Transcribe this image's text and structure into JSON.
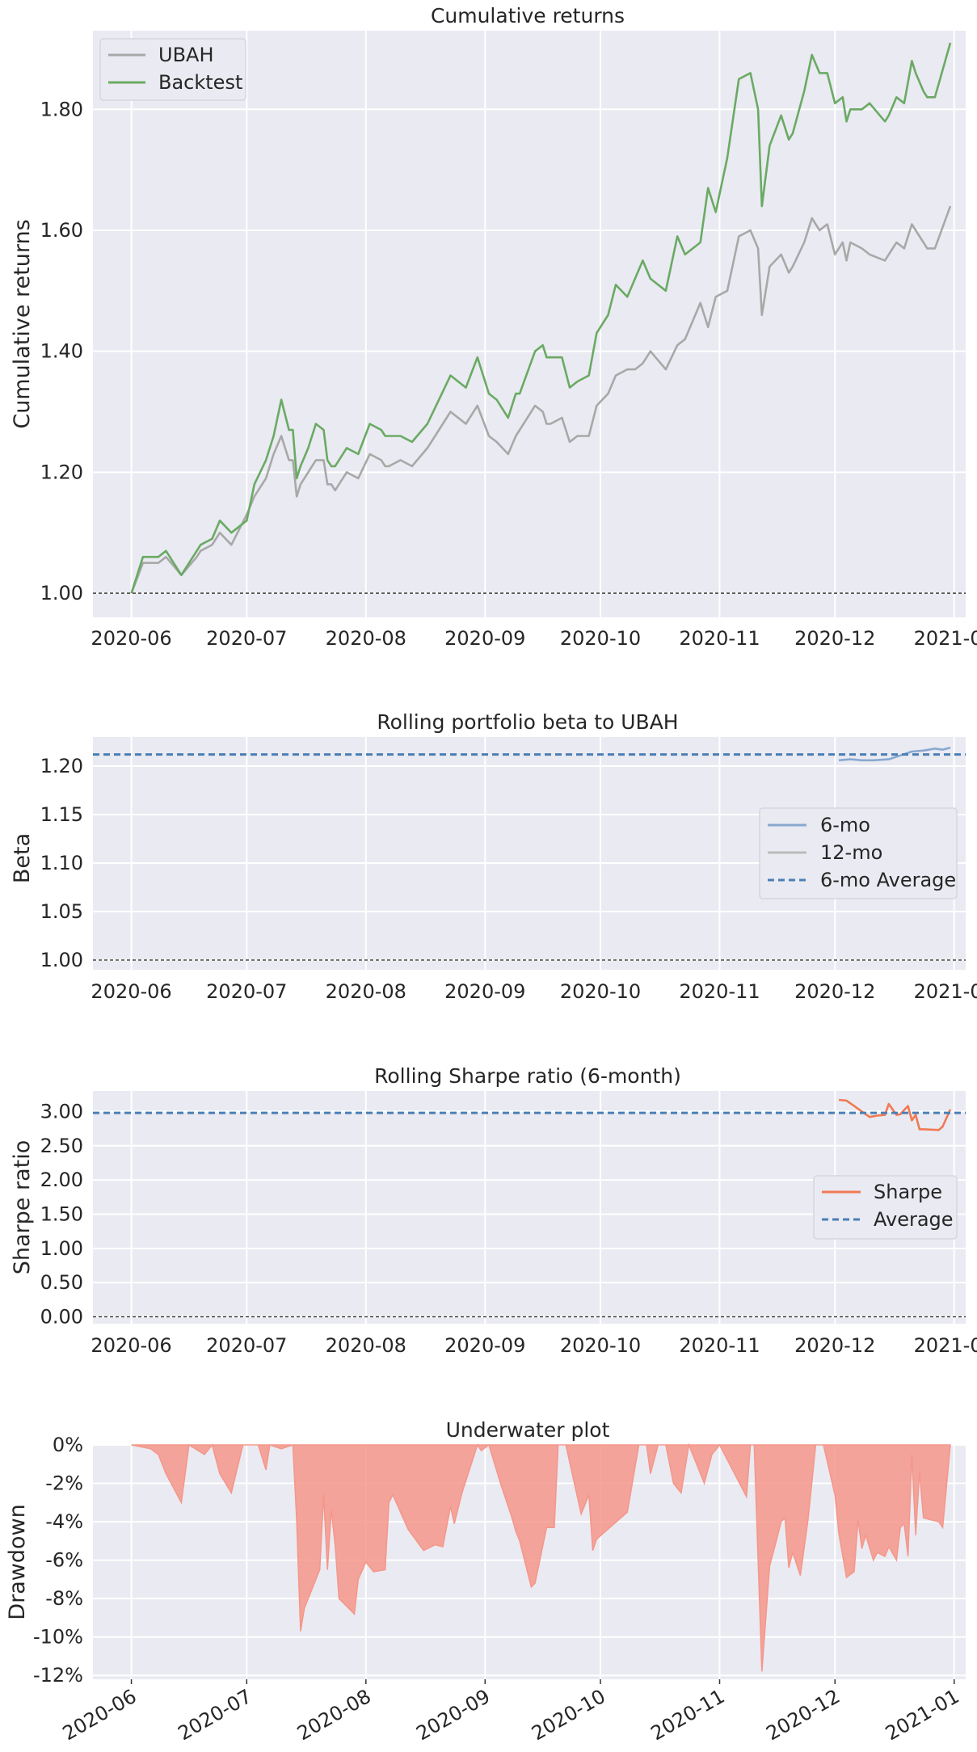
{
  "colors": {
    "ubah": "#a8a8a8",
    "backtest": "#6aaa64",
    "beta6": "#88a8d0",
    "beta12": "#bcbcbc",
    "average": "#4a7fb5",
    "sharpe": "#f07a54",
    "drawdown": "#f4978a",
    "zero_line": "#222222"
  },
  "chart_data": [
    {
      "type": "line",
      "title": "Cumulative returns",
      "ylabel": "Cumulative returns",
      "xlabel": "",
      "ylim": [
        0.96,
        1.93
      ],
      "yticks": [
        1.0,
        1.2,
        1.4,
        1.6,
        1.8
      ],
      "ytick_labels": [
        "1.00",
        "1.20",
        "1.40",
        "1.60",
        "1.80"
      ],
      "xlim": [
        "2020-05-22",
        "2021-01-04"
      ],
      "xticks": [
        "2020-06-01",
        "2020-07-01",
        "2020-08-01",
        "2020-09-01",
        "2020-10-01",
        "2020-11-01",
        "2020-12-01",
        "2021-01-01"
      ],
      "xtick_labels": [
        "2020-06",
        "2020-07",
        "2020-08",
        "2020-09",
        "2020-10",
        "2020-11",
        "2020-12",
        "2021-01"
      ],
      "hline": 1.0,
      "legend_position": "top-left",
      "series": [
        {
          "name": "UBAH",
          "x": [
            "2020-06-01",
            "2020-06-04",
            "2020-06-08",
            "2020-06-10",
            "2020-06-14",
            "2020-06-18",
            "2020-06-19",
            "2020-06-22",
            "2020-06-24",
            "2020-06-27",
            "2020-07-01",
            "2020-07-03",
            "2020-07-06",
            "2020-07-08",
            "2020-07-10",
            "2020-07-12",
            "2020-07-13",
            "2020-07-14",
            "2020-07-15",
            "2020-07-17",
            "2020-07-19",
            "2020-07-21",
            "2020-07-22",
            "2020-07-23",
            "2020-07-24",
            "2020-07-27",
            "2020-07-30",
            "2020-08-02",
            "2020-08-05",
            "2020-08-06",
            "2020-08-07",
            "2020-08-10",
            "2020-08-13",
            "2020-08-17",
            "2020-08-20",
            "2020-08-23",
            "2020-08-25",
            "2020-08-27",
            "2020-08-30",
            "2020-09-02",
            "2020-09-04",
            "2020-09-07",
            "2020-09-09",
            "2020-09-10",
            "2020-09-14",
            "2020-09-16",
            "2020-09-17",
            "2020-09-18",
            "2020-09-21",
            "2020-09-23",
            "2020-09-25",
            "2020-09-28",
            "2020-09-30",
            "2020-10-03",
            "2020-10-05",
            "2020-10-08",
            "2020-10-10",
            "2020-10-12",
            "2020-10-14",
            "2020-10-18",
            "2020-10-21",
            "2020-10-23",
            "2020-10-27",
            "2020-10-29",
            "2020-10-31",
            "2020-11-03",
            "2020-11-06",
            "2020-11-09",
            "2020-11-11",
            "2020-11-12",
            "2020-11-14",
            "2020-11-17",
            "2020-11-19",
            "2020-11-20",
            "2020-11-23",
            "2020-11-25",
            "2020-11-27",
            "2020-11-29",
            "2020-12-01",
            "2020-12-03",
            "2020-12-04",
            "2020-12-05",
            "2020-12-08",
            "2020-12-10",
            "2020-12-14",
            "2020-12-15",
            "2020-12-17",
            "2020-12-19",
            "2020-12-21",
            "2020-12-22",
            "2020-12-24",
            "2020-12-25",
            "2020-12-27",
            "2020-12-31"
          ],
          "values": [
            1.0,
            1.05,
            1.05,
            1.06,
            1.03,
            1.06,
            1.07,
            1.08,
            1.1,
            1.08,
            1.13,
            1.16,
            1.19,
            1.23,
            1.26,
            1.22,
            1.22,
            1.16,
            1.18,
            1.2,
            1.22,
            1.22,
            1.18,
            1.18,
            1.17,
            1.2,
            1.19,
            1.23,
            1.22,
            1.21,
            1.21,
            1.22,
            1.21,
            1.24,
            1.27,
            1.3,
            1.29,
            1.28,
            1.31,
            1.26,
            1.25,
            1.23,
            1.26,
            1.27,
            1.31,
            1.3,
            1.28,
            1.28,
            1.29,
            1.25,
            1.26,
            1.26,
            1.31,
            1.33,
            1.36,
            1.37,
            1.37,
            1.38,
            1.4,
            1.37,
            1.41,
            1.42,
            1.48,
            1.44,
            1.49,
            1.5,
            1.59,
            1.6,
            1.57,
            1.46,
            1.54,
            1.56,
            1.53,
            1.54,
            1.58,
            1.62,
            1.6,
            1.61,
            1.56,
            1.58,
            1.55,
            1.58,
            1.57,
            1.56,
            1.55,
            1.56,
            1.58,
            1.57,
            1.61,
            1.6,
            1.58,
            1.57,
            1.57,
            1.64
          ]
        },
        {
          "name": "Backtest",
          "x": [
            "2020-06-01",
            "2020-06-04",
            "2020-06-08",
            "2020-06-10",
            "2020-06-14",
            "2020-06-18",
            "2020-06-19",
            "2020-06-22",
            "2020-06-24",
            "2020-06-27",
            "2020-07-01",
            "2020-07-03",
            "2020-07-06",
            "2020-07-08",
            "2020-07-10",
            "2020-07-12",
            "2020-07-13",
            "2020-07-14",
            "2020-07-15",
            "2020-07-17",
            "2020-07-19",
            "2020-07-21",
            "2020-07-22",
            "2020-07-23",
            "2020-07-24",
            "2020-07-27",
            "2020-07-30",
            "2020-08-02",
            "2020-08-05",
            "2020-08-06",
            "2020-08-07",
            "2020-08-10",
            "2020-08-13",
            "2020-08-17",
            "2020-08-20",
            "2020-08-23",
            "2020-08-25",
            "2020-08-27",
            "2020-08-30",
            "2020-09-02",
            "2020-09-04",
            "2020-09-07",
            "2020-09-09",
            "2020-09-10",
            "2020-09-14",
            "2020-09-16",
            "2020-09-17",
            "2020-09-18",
            "2020-09-21",
            "2020-09-23",
            "2020-09-25",
            "2020-09-28",
            "2020-09-30",
            "2020-10-03",
            "2020-10-05",
            "2020-10-08",
            "2020-10-10",
            "2020-10-12",
            "2020-10-14",
            "2020-10-18",
            "2020-10-21",
            "2020-10-23",
            "2020-10-27",
            "2020-10-29",
            "2020-10-31",
            "2020-11-03",
            "2020-11-06",
            "2020-11-09",
            "2020-11-11",
            "2020-11-12",
            "2020-11-14",
            "2020-11-17",
            "2020-11-19",
            "2020-11-20",
            "2020-11-23",
            "2020-11-25",
            "2020-11-27",
            "2020-11-29",
            "2020-12-01",
            "2020-12-03",
            "2020-12-04",
            "2020-12-05",
            "2020-12-08",
            "2020-12-10",
            "2020-12-14",
            "2020-12-15",
            "2020-12-17",
            "2020-12-19",
            "2020-12-21",
            "2020-12-22",
            "2020-12-24",
            "2020-12-25",
            "2020-12-27",
            "2020-12-31"
          ],
          "values": [
            1.0,
            1.06,
            1.06,
            1.07,
            1.03,
            1.07,
            1.08,
            1.09,
            1.12,
            1.1,
            1.12,
            1.18,
            1.22,
            1.26,
            1.32,
            1.27,
            1.27,
            1.19,
            1.21,
            1.24,
            1.28,
            1.27,
            1.22,
            1.21,
            1.21,
            1.24,
            1.23,
            1.28,
            1.27,
            1.26,
            1.26,
            1.26,
            1.25,
            1.28,
            1.32,
            1.36,
            1.35,
            1.34,
            1.39,
            1.33,
            1.32,
            1.29,
            1.33,
            1.33,
            1.4,
            1.41,
            1.39,
            1.39,
            1.39,
            1.34,
            1.35,
            1.36,
            1.43,
            1.46,
            1.51,
            1.49,
            1.52,
            1.55,
            1.52,
            1.5,
            1.59,
            1.56,
            1.58,
            1.67,
            1.63,
            1.72,
            1.85,
            1.86,
            1.8,
            1.64,
            1.74,
            1.79,
            1.75,
            1.76,
            1.83,
            1.89,
            1.86,
            1.86,
            1.81,
            1.82,
            1.78,
            1.8,
            1.8,
            1.81,
            1.78,
            1.79,
            1.82,
            1.81,
            1.88,
            1.86,
            1.83,
            1.82,
            1.82,
            1.91
          ]
        }
      ]
    },
    {
      "type": "line",
      "title": "Rolling portfolio beta to UBAH",
      "ylabel": "Beta",
      "xlabel": "",
      "ylim": [
        0.99,
        1.23
      ],
      "yticks": [
        1.0,
        1.05,
        1.1,
        1.15,
        1.2
      ],
      "ytick_labels": [
        "1.00",
        "1.05",
        "1.10",
        "1.15",
        "1.20"
      ],
      "xlim": [
        "2020-05-22",
        "2021-01-04"
      ],
      "xticks": [
        "2020-06-01",
        "2020-07-01",
        "2020-08-01",
        "2020-09-01",
        "2020-10-01",
        "2020-11-01",
        "2020-12-01",
        "2021-01-01"
      ],
      "xtick_labels": [
        "2020-06",
        "2020-07",
        "2020-08",
        "2020-09",
        "2020-10",
        "2020-11",
        "2020-12",
        "2021-01"
      ],
      "hline": 1.0,
      "legend_position": "center-right",
      "series": [
        {
          "name": "6-mo",
          "x": [
            "2020-12-02",
            "2020-12-05",
            "2020-12-08",
            "2020-12-11",
            "2020-12-15",
            "2020-12-18",
            "2020-12-21",
            "2020-12-24",
            "2020-12-27",
            "2020-12-29",
            "2020-12-31"
          ],
          "values": [
            1.206,
            1.207,
            1.206,
            1.206,
            1.207,
            1.211,
            1.215,
            1.216,
            1.218,
            1.217,
            1.219
          ]
        },
        {
          "name": "12-mo",
          "x": [],
          "values": []
        },
        {
          "name": "6-mo Average",
          "hline": 1.212
        }
      ]
    },
    {
      "type": "line",
      "title": "Rolling Sharpe ratio (6-month)",
      "ylabel": "Sharpe ratio",
      "xlabel": "",
      "ylim": [
        -0.1,
        3.3
      ],
      "yticks": [
        0.0,
        0.5,
        1.0,
        1.5,
        2.0,
        2.5,
        3.0
      ],
      "ytick_labels": [
        "0.00",
        "0.50",
        "1.00",
        "1.50",
        "2.00",
        "2.50",
        "3.00"
      ],
      "xlim": [
        "2020-05-22",
        "2021-01-04"
      ],
      "xticks": [
        "2020-06-01",
        "2020-07-01",
        "2020-08-01",
        "2020-09-01",
        "2020-10-01",
        "2020-11-01",
        "2020-12-01",
        "2021-01-01"
      ],
      "xtick_labels": [
        "2020-06",
        "2020-07",
        "2020-08",
        "2020-09",
        "2020-10",
        "2020-11",
        "2020-12",
        "2021-01"
      ],
      "hline": 0.0,
      "legend_position": "center-right",
      "series": [
        {
          "name": "Sharpe",
          "x": [
            "2020-12-02",
            "2020-12-04",
            "2020-12-06",
            "2020-12-08",
            "2020-12-10",
            "2020-12-12",
            "2020-12-14",
            "2020-12-15",
            "2020-12-16",
            "2020-12-17",
            "2020-12-18",
            "2020-12-20",
            "2020-12-21",
            "2020-12-22",
            "2020-12-23",
            "2020-12-24",
            "2020-12-28",
            "2020-12-29",
            "2020-12-31"
          ],
          "values": [
            3.17,
            3.16,
            3.08,
            3.0,
            2.92,
            2.94,
            2.95,
            3.11,
            3.03,
            2.95,
            2.96,
            3.08,
            2.87,
            2.95,
            2.74,
            2.74,
            2.73,
            2.78,
            3.03
          ]
        },
        {
          "name": "Average",
          "hline": 2.98
        }
      ]
    },
    {
      "type": "area",
      "title": "Underwater plot",
      "ylabel": "Drawdown",
      "xlabel": "",
      "ylim": [
        -12.2,
        0.0
      ],
      "yticks": [
        0,
        -2,
        -4,
        -6,
        -8,
        -10,
        -12
      ],
      "ytick_labels": [
        "0%",
        "-2%",
        "-4%",
        "-6%",
        "-8%",
        "-10%",
        "-12%"
      ],
      "xlim": [
        "2020-05-22",
        "2021-01-04"
      ],
      "xticks": [
        "2020-06-01",
        "2020-07-01",
        "2020-08-01",
        "2020-09-01",
        "2020-10-01",
        "2020-11-01",
        "2020-12-01",
        "2021-01-01"
      ],
      "xtick_labels": [
        "2020-06",
        "2020-07",
        "2020-08",
        "2020-09",
        "2020-10",
        "2020-11",
        "2020-12",
        "2021-01"
      ],
      "series": [
        {
          "name": "Drawdown",
          "x": [
            "2020-06-01",
            "2020-06-06",
            "2020-06-08",
            "2020-06-10",
            "2020-06-14",
            "2020-06-16",
            "2020-06-20",
            "2020-06-22",
            "2020-06-24",
            "2020-06-27",
            "2020-06-30",
            "2020-07-04",
            "2020-07-06",
            "2020-07-07",
            "2020-07-10",
            "2020-07-13",
            "2020-07-14",
            "2020-07-15",
            "2020-07-16",
            "2020-07-20",
            "2020-07-21",
            "2020-07-22",
            "2020-07-23",
            "2020-07-24",
            "2020-07-25",
            "2020-07-29",
            "2020-07-30",
            "2020-08-01",
            "2020-08-03",
            "2020-08-06",
            "2020-08-07",
            "2020-08-08",
            "2020-08-12",
            "2020-08-16",
            "2020-08-19",
            "2020-08-21",
            "2020-08-23",
            "2020-08-24",
            "2020-08-26",
            "2020-08-30",
            "2020-08-31",
            "2020-09-02",
            "2020-09-05",
            "2020-09-08",
            "2020-09-09",
            "2020-09-10",
            "2020-09-13",
            "2020-09-14",
            "2020-09-17",
            "2020-09-19",
            "2020-09-20",
            "2020-09-22",
            "2020-09-24",
            "2020-09-26",
            "2020-09-28",
            "2020-09-29",
            "2020-09-30",
            "2020-10-08",
            "2020-10-11",
            "2020-10-13",
            "2020-10-14",
            "2020-10-16",
            "2020-10-18",
            "2020-10-20",
            "2020-10-22",
            "2020-10-24",
            "2020-10-28",
            "2020-10-30",
            "2020-11-01",
            "2020-11-08",
            "2020-11-09",
            "2020-11-10",
            "2020-11-12",
            "2020-11-14",
            "2020-11-16",
            "2020-11-17",
            "2020-11-18",
            "2020-11-19",
            "2020-11-20",
            "2020-11-22",
            "2020-11-24",
            "2020-11-26",
            "2020-11-27",
            "2020-11-28",
            "2020-12-01",
            "2020-12-02",
            "2020-12-04",
            "2020-12-06",
            "2020-12-07",
            "2020-12-08",
            "2020-12-09",
            "2020-12-11",
            "2020-12-12",
            "2020-12-14",
            "2020-12-15",
            "2020-12-17",
            "2020-12-18",
            "2020-12-19",
            "2020-12-20",
            "2020-12-21",
            "2020-12-22",
            "2020-12-23",
            "2020-12-24",
            "2020-12-28",
            "2020-12-29",
            "2020-12-31"
          ],
          "values": [
            0.0,
            -0.2,
            -0.5,
            -1.5,
            -3.0,
            0.0,
            -0.5,
            0.0,
            -1.5,
            -2.5,
            0.0,
            0.0,
            -1.3,
            0.0,
            -0.2,
            0.0,
            -4.0,
            -9.7,
            -8.5,
            -6.5,
            -2.6,
            -6.5,
            -3.4,
            -5.2,
            -8.0,
            -8.8,
            -7.0,
            -6.1,
            -6.6,
            -6.5,
            -3.0,
            -2.6,
            -4.4,
            -5.5,
            -5.2,
            -5.3,
            -3.2,
            -4.1,
            -2.5,
            0.0,
            -0.3,
            0.0,
            -2.0,
            -3.8,
            -4.5,
            -5.0,
            -7.4,
            -7.2,
            -4.3,
            -4.3,
            0.0,
            0.0,
            -1.8,
            -3.6,
            -2.6,
            -5.5,
            -4.9,
            -3.5,
            0.0,
            0.0,
            -1.5,
            0.0,
            0.0,
            -2.0,
            -2.5,
            0.0,
            -2.0,
            -0.5,
            0.0,
            -2.7,
            0.0,
            0.0,
            -11.8,
            -6.3,
            -4.8,
            -4.0,
            -3.8,
            -6.4,
            -5.6,
            -6.8,
            -3.9,
            0.0,
            0.0,
            0.0,
            -2.6,
            -4.6,
            -6.9,
            -6.6,
            -3.9,
            -5.4,
            -4.7,
            -6.0,
            -5.6,
            -5.8,
            -5.3,
            -6.0,
            -4.3,
            -4.1,
            -5.8,
            -0.5,
            -4.7,
            -1.4,
            -3.8,
            -4.0,
            -4.3,
            0.0
          ]
        }
      ]
    }
  ]
}
